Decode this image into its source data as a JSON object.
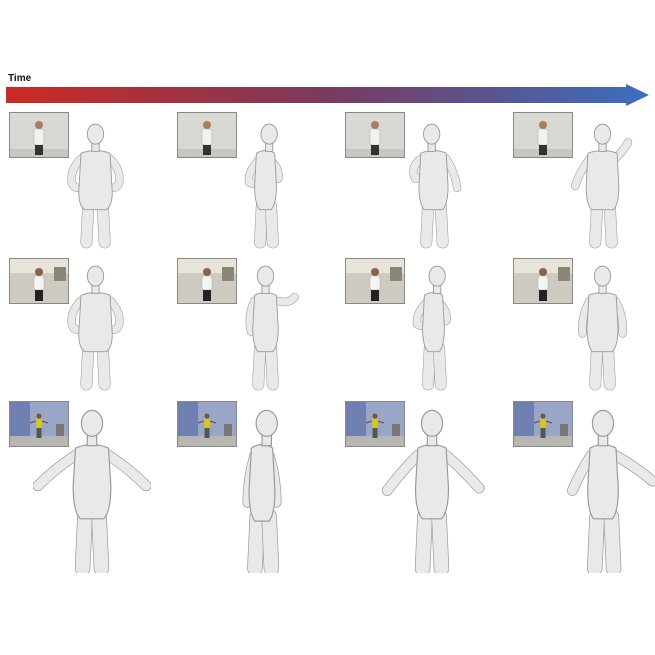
{
  "axis": {
    "label": "Time"
  },
  "colors": {
    "arrow_start": "#cc2a22",
    "arrow_end": "#3a6fc1",
    "mesh": "#e9e9e9",
    "mesh_stroke": "#9a9a9a"
  },
  "rows": [
    {
      "name": "row-1",
      "scene": "indoor-light-wall",
      "frames": [
        {
          "pose": "front-arms-bent"
        },
        {
          "pose": "side-arms-forward"
        },
        {
          "pose": "three-quarter-arm-across"
        },
        {
          "pose": "back-arm-raised"
        }
      ]
    },
    {
      "name": "row-2",
      "scene": "indoor-room",
      "frames": [
        {
          "pose": "front-arms-bent"
        },
        {
          "pose": "three-quarter-arm-out"
        },
        {
          "pose": "side-arms-forward"
        },
        {
          "pose": "back-arms-down"
        }
      ]
    },
    {
      "name": "row-3",
      "scene": "studio-blue-wall",
      "frames": [
        {
          "pose": "front-t-pose"
        },
        {
          "pose": "side-arms-down"
        },
        {
          "pose": "three-quarter-arms-out"
        },
        {
          "pose": "back-arm-out"
        }
      ]
    }
  ]
}
